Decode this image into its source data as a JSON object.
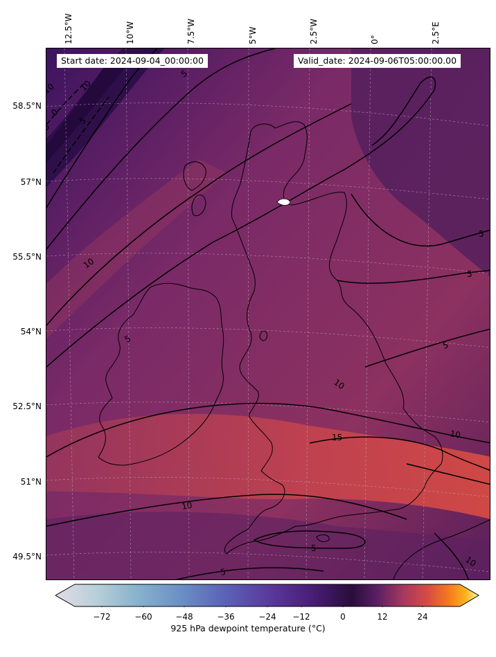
{
  "map": {
    "start_date": "Start date: 2024-09-04_00:00:00",
    "valid_date": "Valid_date: 2024-09-06T05:00:00.00",
    "lon_labels": [
      "12.5°W",
      "10°W",
      "7.5°W",
      "5°W",
      "2.5°W",
      "0°",
      "2.5°E"
    ],
    "lat_labels": [
      "58.5°N",
      "57°N",
      "55.5°N",
      "54°N",
      "52.5°N",
      "51°N",
      "49.5°N"
    ],
    "contour_labels": [
      "10",
      "10",
      "5",
      "0",
      "5",
      "5",
      "5",
      "5",
      "10",
      "5",
      "10",
      "15",
      "10",
      "10",
      "5",
      "5",
      "5",
      "10"
    ]
  },
  "colorbar": {
    "label": "925 hPa dewpoint temperature ($^\\circ$C)",
    "label_display": "925 hPa dewpoint temperature (°C)",
    "ticks": [
      "−72",
      "−60",
      "−48",
      "−36",
      "−24",
      "−12",
      "0",
      "12",
      "24"
    ],
    "tick_values": [
      -72,
      -60,
      -48,
      -36,
      -24,
      -12,
      0,
      12,
      24
    ],
    "range": [
      -80,
      32
    ],
    "colormap": [
      "#e3dce6",
      "#9fc3d3",
      "#6a94c4",
      "#5b6fc0",
      "#5c45a8",
      "#4a1f7a",
      "#2a0d3b",
      "#5a1f63",
      "#a3385f",
      "#d64c44",
      "#f57a1e",
      "#fbb31d",
      "#fcf8a0"
    ]
  }
}
